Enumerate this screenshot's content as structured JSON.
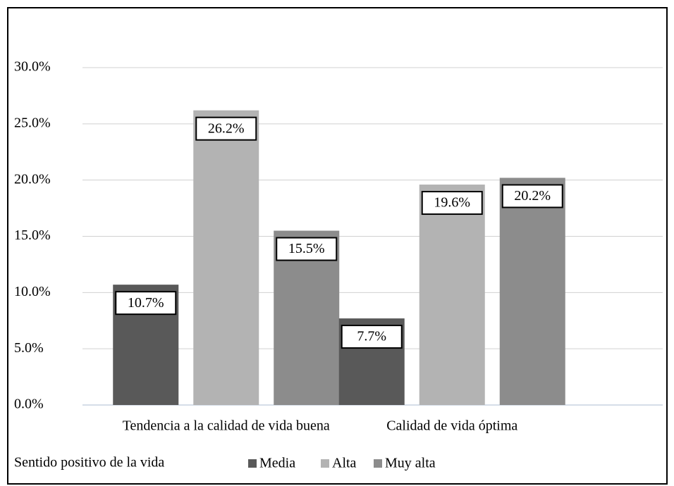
{
  "chart_data": {
    "type": "bar",
    "categories": [
      "Tendencia a la calidad de vida buena",
      "Calidad de vida óptima"
    ],
    "legend_title": "Sentido positivo de la vida",
    "series": [
      {
        "name": "Media",
        "color": "#595959",
        "values": [
          10.7,
          7.7
        ],
        "value_labels": [
          "10.7%",
          "7.7%"
        ]
      },
      {
        "name": "Alta",
        "color": "#b3b3b3",
        "values": [
          26.2,
          19.6
        ],
        "value_labels": [
          "26.2%",
          "19.6%"
        ]
      },
      {
        "name": "Muy alta",
        "color": "#8c8c8c",
        "values": [
          15.5,
          20.2
        ],
        "value_labels": [
          "15.5%",
          "20.2%"
        ]
      }
    ],
    "ylim": [
      0,
      30
    ],
    "yticks": [
      {
        "value": 0,
        "label": "0.0%"
      },
      {
        "value": 5,
        "label": "5.0%"
      },
      {
        "value": 10,
        "label": "10.0%"
      },
      {
        "value": 15,
        "label": "15.0%"
      },
      {
        "value": 20,
        "label": "20.0%"
      },
      {
        "value": 25,
        "label": "25.0%"
      },
      {
        "value": 30,
        "label": "30.0%"
      }
    ],
    "grid": true,
    "legend": "bottom"
  }
}
